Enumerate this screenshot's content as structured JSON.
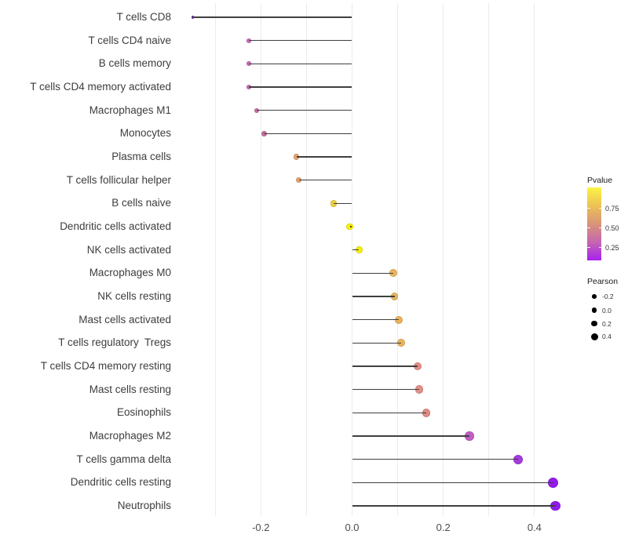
{
  "chart_data": {
    "type": "lollipop",
    "title": "",
    "xlabel": "",
    "ylabel": "",
    "background": "#ffffff",
    "gridlines_x": [
      -0.3,
      -0.2,
      -0.1,
      0.0,
      0.1,
      0.2,
      0.3,
      0.4
    ],
    "x_ticks": [
      -0.2,
      0.0,
      0.2,
      0.4
    ],
    "x_tick_labels": [
      "-0.2",
      "0.0",
      "0.2",
      "0.4"
    ],
    "xlim": [
      -0.39,
      0.49
    ],
    "baseline_x": 0.0,
    "categories": [
      "T cells CD8",
      "T cells CD4 naive",
      "B cells memory",
      "T cells CD4 memory activated",
      "Macrophages M1",
      "Monocytes",
      "Plasma cells",
      "T cells follicular helper",
      "B cells naive",
      "Dendritic cells activated",
      "NK cells activated",
      "Macrophages M0",
      "NK cells resting",
      "Mast cells activated",
      "T cells regulatory  Tregs",
      "T cells CD4 memory resting",
      "Mast cells resting",
      "Eosinophils",
      "Macrophages M2",
      "T cells gamma delta",
      "Dendritic cells resting",
      "Neutrophils"
    ],
    "series": [
      {
        "name": "Pearson",
        "values": [
          -0.35,
          -0.227,
          -0.226,
          -0.226,
          -0.209,
          -0.193,
          -0.122,
          -0.117,
          -0.04,
          -0.005,
          0.015,
          0.09,
          0.093,
          0.103,
          0.108,
          0.144,
          0.147,
          0.163,
          0.257,
          0.364,
          0.441,
          0.446
        ]
      },
      {
        "name": "Pvalue (estimated from color)",
        "values": [
          0.16,
          0.34,
          0.34,
          0.34,
          0.38,
          0.41,
          0.66,
          0.66,
          0.86,
          0.99,
          0.98,
          0.73,
          0.73,
          0.74,
          0.74,
          0.59,
          0.59,
          0.56,
          0.32,
          0.13,
          0.1,
          0.1
        ]
      }
    ],
    "point_colors": [
      "#8F2BE2",
      "#CC6CBA",
      "#CC6CBA",
      "#CC6CBA",
      "#C96FA9",
      "#CA719C",
      "#E5A470",
      "#E5A470",
      "#EDD03F",
      "#FBF303",
      "#FAEF05",
      "#EBB55E",
      "#EBB55E",
      "#EAB35B",
      "#EAB35B",
      "#E39088",
      "#E39088",
      "#E08B83",
      "#C35EC7",
      "#A53BDF",
      "#941CEC",
      "#9318F0"
    ],
    "legend_pvalue": {
      "title": "Pvalue",
      "ticks": [
        "0.75",
        "0.50",
        "0.25"
      ],
      "gradient_stops": [
        "#FBF443",
        "#ECC155",
        "#D99478",
        "#C566B0",
        "#A622F0"
      ],
      "high_color": "#FBF443",
      "low_color": "#A622F0"
    },
    "legend_pearson": {
      "title": "Pearson",
      "ticks": [
        "-0.2",
        "0.0",
        "0.2",
        "0.4"
      ],
      "tick_values": [
        -0.2,
        0.0,
        0.2,
        0.4
      ]
    }
  }
}
